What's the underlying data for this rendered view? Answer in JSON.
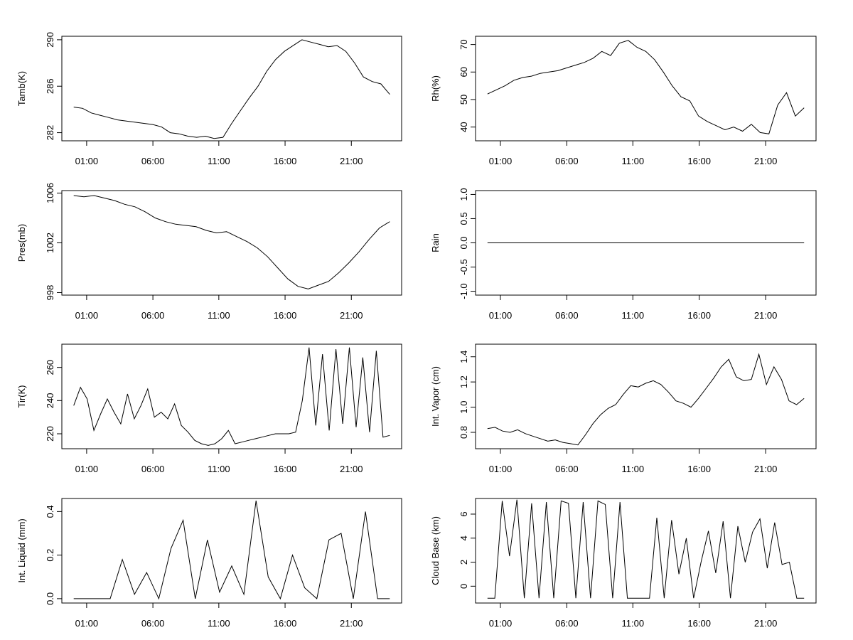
{
  "x_ticks": [
    "01:00",
    "06:00",
    "11:00",
    "16:00",
    "21:00"
  ],
  "chart_data": [
    {
      "type": "line",
      "ylabel": "Tamb(K)",
      "yticks": [
        "282",
        "286",
        "290"
      ],
      "ylim": [
        281.3,
        290.3
      ],
      "series": [
        {
          "values": [
            284.2,
            284.1,
            283.7,
            283.5,
            283.3,
            283.1,
            283.0,
            282.9,
            282.8,
            282.7,
            282.5,
            282.0,
            281.9,
            281.7,
            281.6,
            281.7,
            281.5,
            281.6,
            282.8,
            283.9,
            285.0,
            286.0,
            287.3,
            288.3,
            289.0,
            289.5,
            290.0,
            289.8,
            289.6,
            289.4,
            289.5,
            289.0,
            288.0,
            286.8,
            286.4,
            286.2,
            285.3
          ]
        }
      ]
    },
    {
      "type": "line",
      "ylabel": "Rh(%)",
      "yticks": [
        "40",
        "50",
        "60",
        "70"
      ],
      "ylim": [
        35,
        73
      ],
      "series": [
        {
          "values": [
            52.0,
            53.5,
            55.0,
            57.0,
            58.0,
            58.5,
            59.5,
            60.0,
            60.5,
            61.5,
            62.5,
            63.5,
            65.0,
            67.5,
            66.0,
            70.5,
            71.5,
            69.0,
            67.5,
            64.5,
            60.0,
            55.0,
            51.0,
            49.5,
            44.0,
            42.0,
            40.5,
            39.0,
            40.0,
            38.5,
            41.0,
            38.0,
            37.5,
            48.0,
            52.5,
            44.0,
            47.0
          ]
        }
      ]
    },
    {
      "type": "line",
      "ylabel": "Pres(mb)",
      "yticks": [
        "998",
        "1002",
        "1006"
      ],
      "ylim": [
        997.8,
        1006.2
      ],
      "series": [
        {
          "values": [
            1005.8,
            1005.7,
            1005.8,
            1005.6,
            1005.4,
            1005.1,
            1004.9,
            1004.5,
            1004.0,
            1003.7,
            1003.5,
            1003.4,
            1003.3,
            1003.0,
            1002.8,
            1002.9,
            1002.5,
            1002.1,
            1001.6,
            1000.9,
            1000.0,
            999.1,
            998.5,
            998.3,
            998.6,
            998.9,
            999.6,
            1000.4,
            1001.3,
            1002.3,
            1003.2,
            1003.7
          ]
        }
      ]
    },
    {
      "type": "line",
      "ylabel": "Rain",
      "yticks": [
        "-1.0",
        "-0.5",
        "0.0",
        "0.5",
        "1.0"
      ],
      "ylim": [
        -1.08,
        1.08
      ],
      "series": [
        {
          "values": [
            0,
            0
          ]
        }
      ]
    },
    {
      "type": "line",
      "ylabel": "Tir(K)",
      "yticks": [
        "220",
        "240",
        "260"
      ],
      "ylim": [
        211,
        274
      ],
      "series": [
        {
          "values": [
            237,
            248,
            241,
            222,
            232,
            241,
            233,
            226,
            244,
            229,
            237,
            247,
            230,
            233,
            229,
            238,
            225,
            221,
            216,
            214,
            213,
            214,
            217,
            222,
            214,
            215,
            216,
            217,
            218,
            219,
            220,
            220,
            220,
            221,
            240,
            272,
            225,
            268,
            222,
            271,
            226,
            272,
            224,
            266,
            221,
            270,
            218,
            219
          ]
        }
      ]
    },
    {
      "type": "line",
      "ylabel": "Int. Vapor (cm)",
      "yticks": [
        "0.8",
        "1.0",
        "1.2",
        "1.4"
      ],
      "ylim": [
        0.67,
        1.5
      ],
      "series": [
        {
          "values": [
            0.83,
            0.84,
            0.81,
            0.8,
            0.82,
            0.79,
            0.77,
            0.75,
            0.73,
            0.74,
            0.72,
            0.71,
            0.7,
            0.78,
            0.87,
            0.94,
            0.99,
            1.02,
            1.1,
            1.17,
            1.16,
            1.19,
            1.21,
            1.18,
            1.12,
            1.05,
            1.03,
            1.0,
            1.07,
            1.15,
            1.23,
            1.32,
            1.38,
            1.24,
            1.21,
            1.22,
            1.42,
            1.18,
            1.32,
            1.22,
            1.05,
            1.02,
            1.07
          ]
        }
      ]
    },
    {
      "type": "line",
      "ylabel": "Int. Liquid (mm)",
      "yticks": [
        "0.0",
        "0.2",
        "0.4"
      ],
      "ylim": [
        -0.02,
        0.46
      ],
      "series": [
        {
          "values": [
            0,
            0,
            0,
            0,
            0.18,
            0.02,
            0.12,
            0.0,
            0.23,
            0.36,
            0.0,
            0.27,
            0.03,
            0.15,
            0.02,
            0.45,
            0.1,
            0.0,
            0.2,
            0.05,
            0.0,
            0.27,
            0.3,
            0.0,
            0.4,
            0.0,
            0.0
          ]
        }
      ]
    },
    {
      "type": "line",
      "ylabel": "Cloud Base (km)",
      "yticks": [
        "0",
        "2",
        "4",
        "6"
      ],
      "ylim": [
        -1.4,
        7.3
      ],
      "series": [
        {
          "values": [
            -1,
            -1,
            7.1,
            2.5,
            7.2,
            -1,
            6.9,
            -1,
            7.0,
            -1,
            7.1,
            6.9,
            -1,
            7.0,
            -1,
            7.1,
            6.8,
            -1,
            7.0,
            -1,
            -1,
            -1,
            -1,
            5.7,
            -1,
            5.5,
            1.0,
            4.0,
            -1,
            2.0,
            4.6,
            1.1,
            5.4,
            -1,
            5.0,
            2.0,
            4.5,
            5.6,
            1.5,
            5.3,
            1.8,
            2.0,
            -1,
            -1
          ]
        }
      ]
    }
  ]
}
